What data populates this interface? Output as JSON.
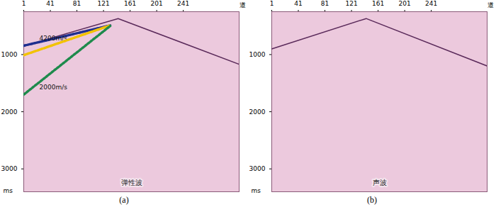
{
  "chart_data": [
    {
      "type": "seismic_gather",
      "title": "弹性波",
      "caption": "(a)",
      "x_label": "道",
      "y_label": "ms",
      "xlim": [
        1,
        325
      ],
      "ylim": [
        250,
        3400
      ],
      "xticks": [
        1,
        41,
        81,
        121,
        161,
        201,
        241
      ],
      "yticks": [
        1000,
        2000,
        3000
      ],
      "first_arrival": {
        "x": [
          1,
          143,
          325
        ],
        "y": [
          850,
          370,
          1170
        ]
      },
      "annotations": [
        {
          "label": "4200m/s",
          "color": "#1f2f8f",
          "line_style": "dotted",
          "x": [
            1,
            131
          ],
          "y": [
            845,
            490
          ]
        },
        {
          "color": "#f2c200",
          "line_style": "dotted",
          "x": [
            1,
            131
          ],
          "y": [
            1010,
            490
          ]
        },
        {
          "label": "2000m/s",
          "color": "#1e8a4c",
          "line_style": "dotted",
          "x": [
            1,
            131
          ],
          "y": [
            1700,
            500
          ]
        }
      ]
    },
    {
      "type": "seismic_gather",
      "title": "声波",
      "caption": "(b)",
      "x_label": "道",
      "y_label": "ms",
      "xlim": [
        1,
        325
      ],
      "ylim": [
        250,
        3400
      ],
      "xticks": [
        1,
        41,
        81,
        121,
        161,
        201,
        241
      ],
      "yticks": [
        1000,
        2000,
        3000
      ],
      "first_arrival": {
        "x": [
          1,
          143,
          325
        ],
        "y": [
          900,
          370,
          1200
        ]
      },
      "annotations": []
    }
  ]
}
